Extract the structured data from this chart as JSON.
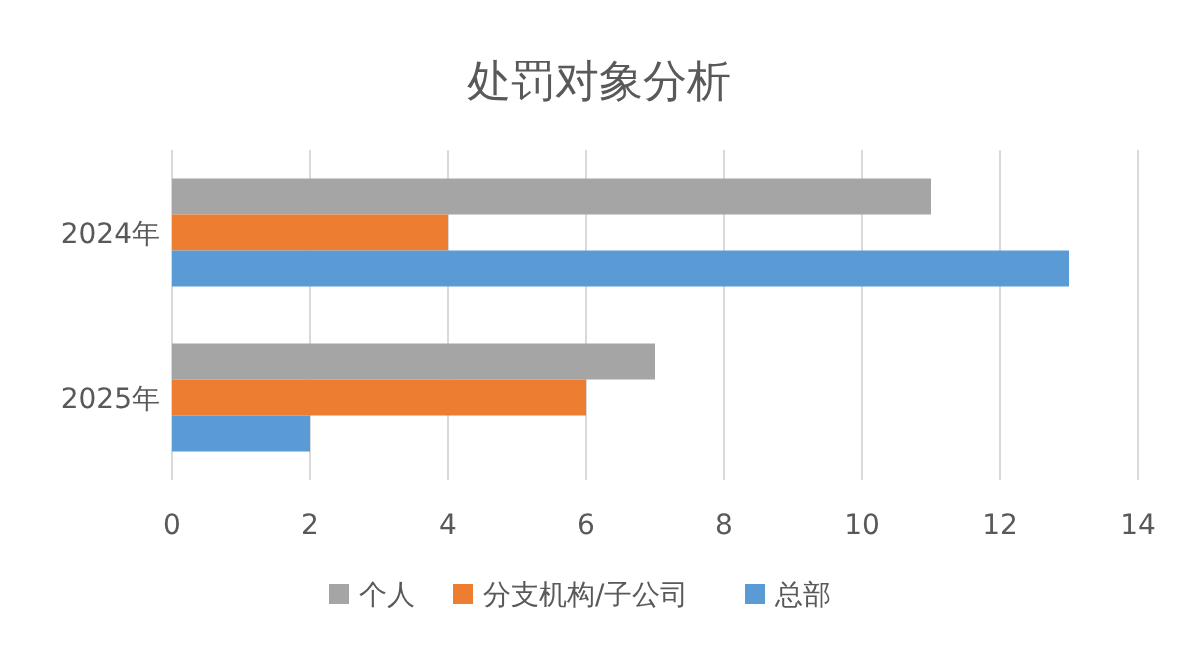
{
  "chart_data": {
    "type": "bar",
    "orientation": "horizontal",
    "title": "处罚对象分析",
    "categories": [
      "2024年",
      "2025年"
    ],
    "series": [
      {
        "name": "个人",
        "color": "#a5a5a5",
        "values": [
          11,
          7
        ]
      },
      {
        "name": "分支机构/子公司",
        "color": "#ed7d31",
        "values": [
          4,
          6
        ]
      },
      {
        "name": "总部",
        "color": "#5b9bd5",
        "values": [
          13,
          2
        ]
      }
    ],
    "xlim": [
      0,
      14
    ],
    "xticks": [
      0,
      2,
      4,
      6,
      8,
      10,
      12,
      14
    ],
    "grid": "x",
    "legend": "bottom"
  }
}
